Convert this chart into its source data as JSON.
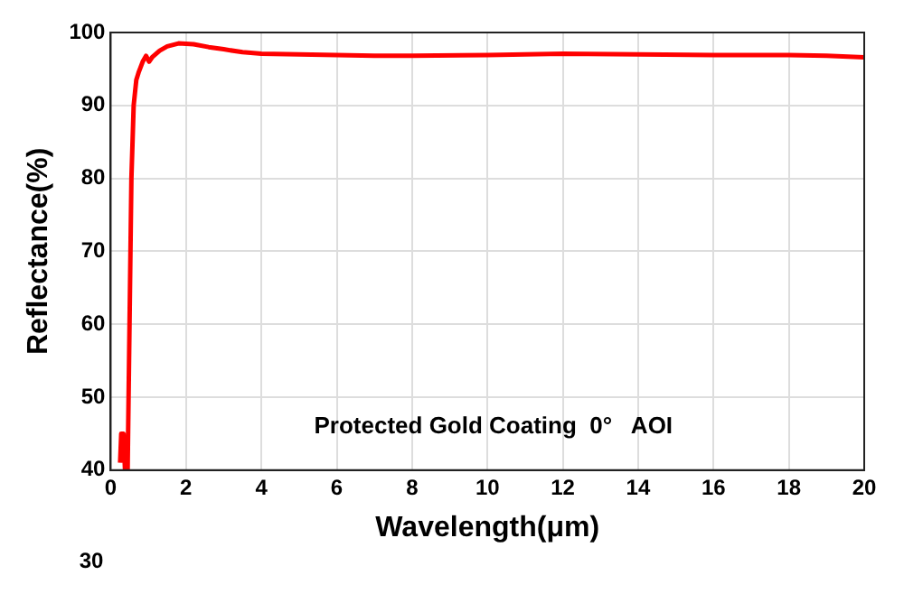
{
  "chart_data": {
    "type": "line",
    "xlabel": "Wavelength(μm)",
    "ylabel": "Reflectance(%)",
    "x": [
      0.25,
      0.28,
      0.31,
      0.34,
      0.38,
      0.45,
      0.5,
      0.55,
      0.61,
      0.68,
      0.74,
      0.85,
      0.94,
      1.02,
      1.1,
      1.3,
      1.5,
      1.8,
      2.2,
      2.6,
      3,
      3.5,
      4,
      5,
      6,
      7,
      8,
      10,
      12,
      14,
      16,
      18,
      19,
      20
    ],
    "series": [
      {
        "color": "#ff0000",
        "values": [
          41,
          45,
          43,
          45,
          40,
          40,
          60,
          80,
          90,
          93.5,
          94.5,
          96,
          96.8,
          96,
          96.6,
          97.5,
          98.1,
          98.5,
          98.4,
          98,
          97.7,
          97.3,
          97.1,
          97,
          96.9,
          96.8,
          96.8,
          96.9,
          97.1,
          97,
          96.9,
          96.9,
          96.8,
          96.6
        ]
      }
    ],
    "xlim": [
      0,
      20
    ],
    "xticks": [
      0,
      2,
      4,
      6,
      8,
      10,
      12,
      14,
      16,
      18,
      20
    ],
    "ylim": [
      40,
      100
    ],
    "yticks": [
      40,
      50,
      60,
      70,
      80,
      90,
      100
    ],
    "grid": true,
    "marker": "none",
    "line_style": "solid",
    "annotations": [
      "Protected Gold Coating  0°   AOI",
      "30"
    ]
  }
}
